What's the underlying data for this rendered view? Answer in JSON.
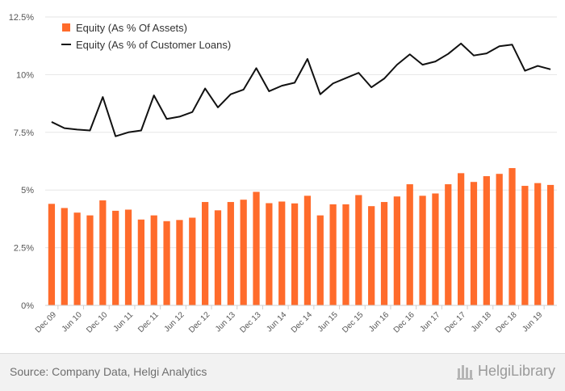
{
  "chart_data": {
    "type": "bar+line",
    "title": "",
    "xlabel": "",
    "ylabel": "",
    "ylim": [
      0,
      12.5
    ],
    "yticks": [
      0,
      2.5,
      5,
      7.5,
      10,
      12.5
    ],
    "ytick_labels": [
      "0%",
      "2.5%",
      "5%",
      "7.5%",
      "10%",
      "12.5%"
    ],
    "categories": [
      "Dec 09",
      "Mar 10",
      "Jun 10",
      "Sep 10",
      "Dec 10",
      "Mar 11",
      "Jun 11",
      "Sep 11",
      "Dec 11",
      "Mar 12",
      "Jun 12",
      "Sep 12",
      "Dec 12",
      "Mar 13",
      "Jun 13",
      "Sep 13",
      "Dec 13",
      "Mar 14",
      "Jun 14",
      "Sep 14",
      "Dec 14",
      "Mar 15",
      "Jun 15",
      "Sep 15",
      "Dec 15",
      "Mar 16",
      "Jun 16",
      "Sep 16",
      "Dec 16",
      "Mar 17",
      "Jun 17",
      "Sep 17",
      "Dec 17",
      "Mar 18",
      "Jun 18",
      "Sep 18",
      "Dec 18",
      "Mar 19",
      "Jun 19",
      "Sep 19"
    ],
    "xtick_labels": [
      "Dec 09",
      "Jun 10",
      "Dec 10",
      "Jun 11",
      "Dec 11",
      "Jun 12",
      "Dec 12",
      "Jun 13",
      "Dec 13",
      "Jun 14",
      "Dec 14",
      "Jun 15",
      "Dec 15",
      "Jun 16",
      "Dec 16",
      "Jun 17",
      "Dec 17",
      "Jun 18",
      "Dec 18",
      "Jun 19"
    ],
    "legend_position": "top-left",
    "series": [
      {
        "name": "Equity (As % Of Assets)",
        "type": "bar",
        "color": "#ff6b2b",
        "values": [
          4.4,
          4.22,
          4.02,
          3.9,
          4.55,
          4.1,
          4.15,
          3.72,
          3.9,
          3.65,
          3.7,
          3.8,
          4.48,
          4.12,
          4.48,
          4.58,
          4.92,
          4.43,
          4.5,
          4.42,
          4.75,
          3.9,
          4.38,
          4.38,
          4.78,
          4.3,
          4.48,
          4.72,
          5.25,
          4.75,
          4.85,
          5.25,
          5.73,
          5.35,
          5.6,
          5.7,
          5.95,
          5.18,
          5.3,
          5.22
        ]
      },
      {
        "name": "Equity (As % of Customer Loans)",
        "type": "line",
        "color": "#111111",
        "values": [
          7.95,
          7.68,
          7.62,
          7.58,
          9.03,
          7.33,
          7.5,
          7.58,
          9.1,
          8.08,
          8.18,
          8.38,
          9.4,
          8.58,
          9.15,
          9.35,
          10.28,
          9.28,
          9.52,
          9.65,
          10.68,
          9.15,
          9.62,
          9.85,
          10.08,
          9.45,
          9.83,
          10.43,
          10.88,
          10.43,
          10.57,
          10.9,
          11.35,
          10.83,
          10.92,
          11.23,
          11.3,
          10.17,
          10.38,
          10.23
        ]
      }
    ]
  },
  "footer": {
    "source": "Source: Company Data, Helgi Analytics",
    "brand": "HelgiLibrary"
  }
}
